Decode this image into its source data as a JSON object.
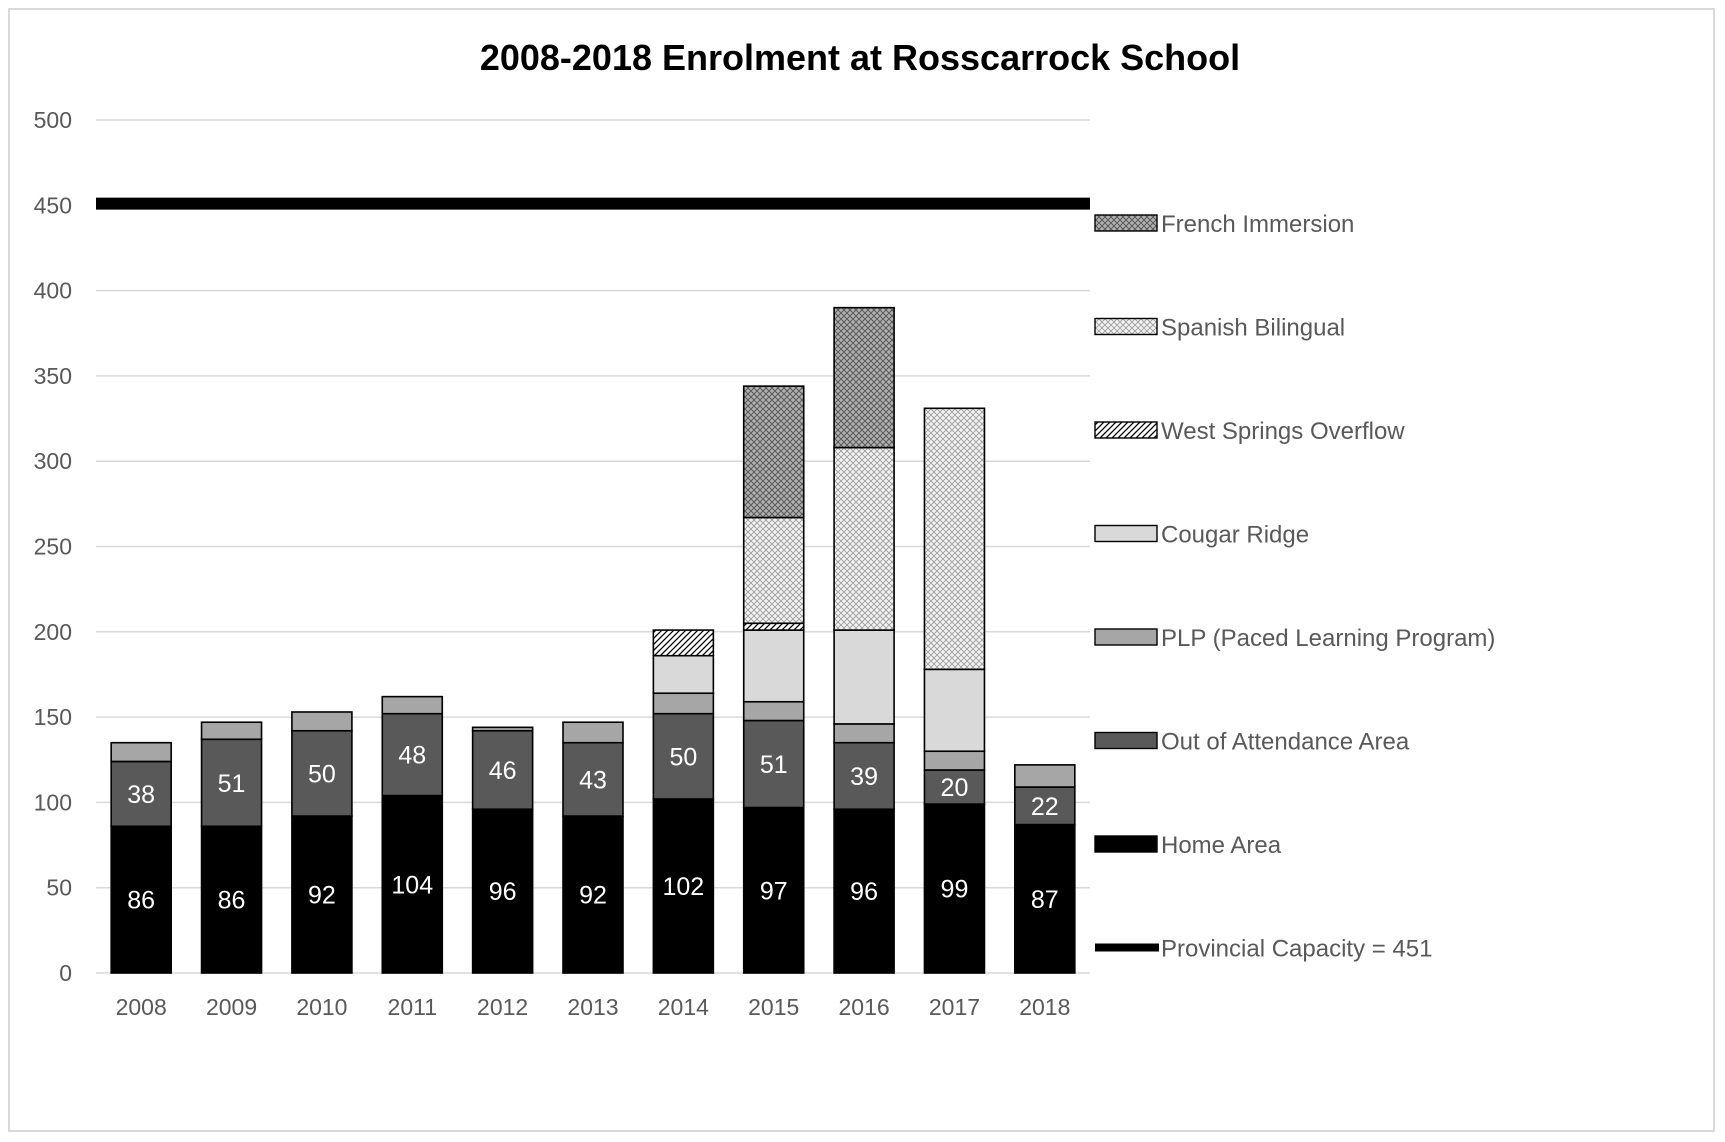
{
  "chart_data": {
    "type": "bar",
    "stacked": true,
    "title": "2008-2018 Enrolment at Rosscarrock School",
    "xlabel": "",
    "ylabel": "",
    "ylim": [
      0,
      500
    ],
    "yticks": [
      0,
      50,
      100,
      150,
      200,
      250,
      300,
      350,
      400,
      450,
      500
    ],
    "grid": true,
    "legend_position": "right",
    "categories": [
      "2008",
      "2009",
      "2010",
      "2011",
      "2012",
      "2013",
      "2014",
      "2015",
      "2016",
      "2017",
      "2018"
    ],
    "series": [
      {
        "name": "Home Area",
        "color": "#000000",
        "pattern": "solid",
        "label_color": "#ffffff",
        "values": [
          86,
          86,
          92,
          104,
          96,
          92,
          102,
          97,
          96,
          99,
          87
        ],
        "labels": [
          "86",
          "86",
          "92",
          "104",
          "96",
          "92",
          "102",
          "97",
          "96",
          "99",
          "87"
        ]
      },
      {
        "name": "Out of Attendance Area",
        "color": "#595959",
        "pattern": "solid",
        "label_color": "#ffffff",
        "values": [
          38,
          51,
          50,
          48,
          46,
          43,
          50,
          51,
          39,
          20,
          22
        ],
        "labels": [
          "38",
          "51",
          "50",
          "48",
          "46",
          "43",
          "50",
          "51",
          "39",
          "20",
          "22"
        ]
      },
      {
        "name": "PLP (Paced Learning Program)",
        "color": "#a6a6a6",
        "pattern": "solid",
        "values": [
          11,
          10,
          11,
          10,
          2,
          12,
          12,
          11,
          11,
          11,
          13
        ]
      },
      {
        "name": "Cougar Ridge",
        "color": "#d9d9d9",
        "pattern": "solid",
        "values": [
          0,
          0,
          0,
          0,
          0,
          0,
          22,
          42,
          55,
          48,
          0
        ]
      },
      {
        "name": "West Springs Overflow",
        "color": "#ffffff",
        "pattern": "diagonal",
        "values": [
          0,
          0,
          0,
          0,
          0,
          0,
          15,
          4,
          0,
          0,
          0
        ]
      },
      {
        "name": "Spanish Bilingual",
        "color": "#ffffff",
        "pattern": "crosshatch-light",
        "values": [
          0,
          0,
          0,
          0,
          0,
          0,
          0,
          62,
          107,
          153,
          0
        ]
      },
      {
        "name": "French Immersion",
        "color": "#bfbfbf",
        "pattern": "crosshatch-dark",
        "values": [
          0,
          0,
          0,
          0,
          0,
          0,
          0,
          77,
          82,
          0,
          0
        ]
      }
    ],
    "reference_line": {
      "name": "Provincial Capacity = 451",
      "value": 451,
      "color": "#000000"
    },
    "legend_order": [
      "French Immersion",
      "Spanish Bilingual",
      "West Springs Overflow",
      "Cougar Ridge",
      "PLP (Paced Learning Program)",
      "Out of Attendance Area",
      "Home Area",
      "Provincial Capacity = 451"
    ]
  }
}
